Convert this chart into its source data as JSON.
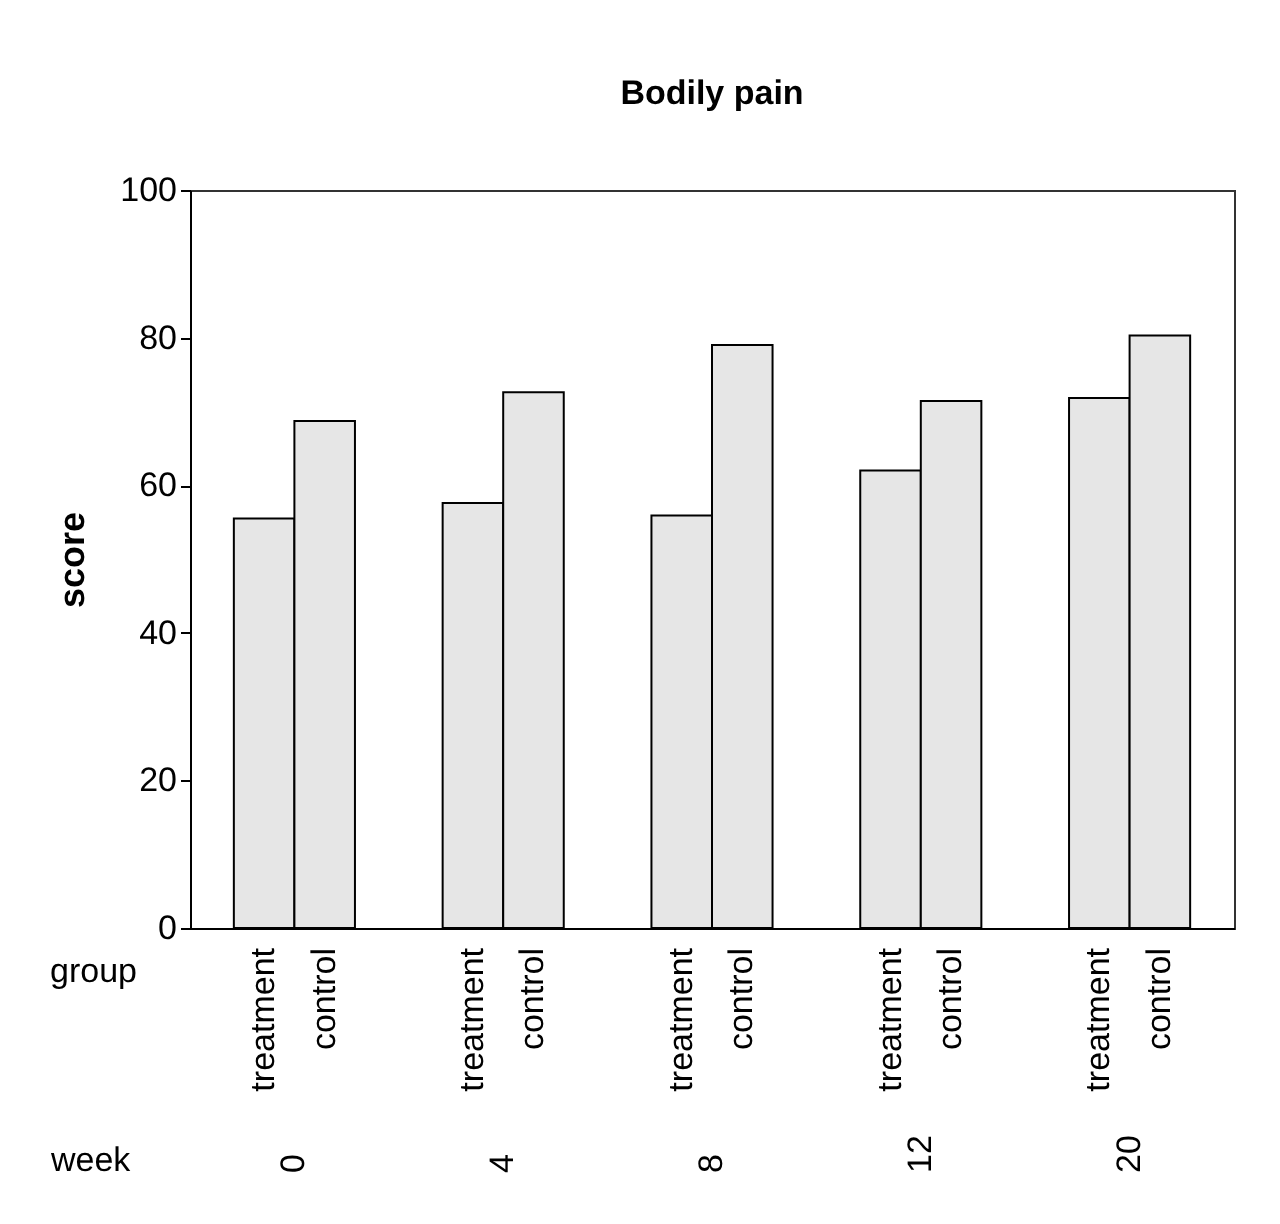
{
  "chart_data": {
    "type": "bar",
    "title": "Bodily pain",
    "xlabel": "week",
    "ylabel": "score",
    "legend_title": "group",
    "categories": [
      "0",
      "4",
      "8",
      "12",
      "20"
    ],
    "series": [
      {
        "name": "treatment",
        "color": "#e6e6e6",
        "values": [
          55.5,
          57.6,
          55.9,
          62.0,
          71.8
        ]
      },
      {
        "name": "control",
        "color": "#e6e6e6",
        "values": [
          68.7,
          72.6,
          79.0,
          71.4,
          80.3
        ]
      }
    ],
    "ylim": [
      0,
      100
    ],
    "yticks": [
      0,
      20,
      40,
      60,
      80,
      100
    ]
  }
}
